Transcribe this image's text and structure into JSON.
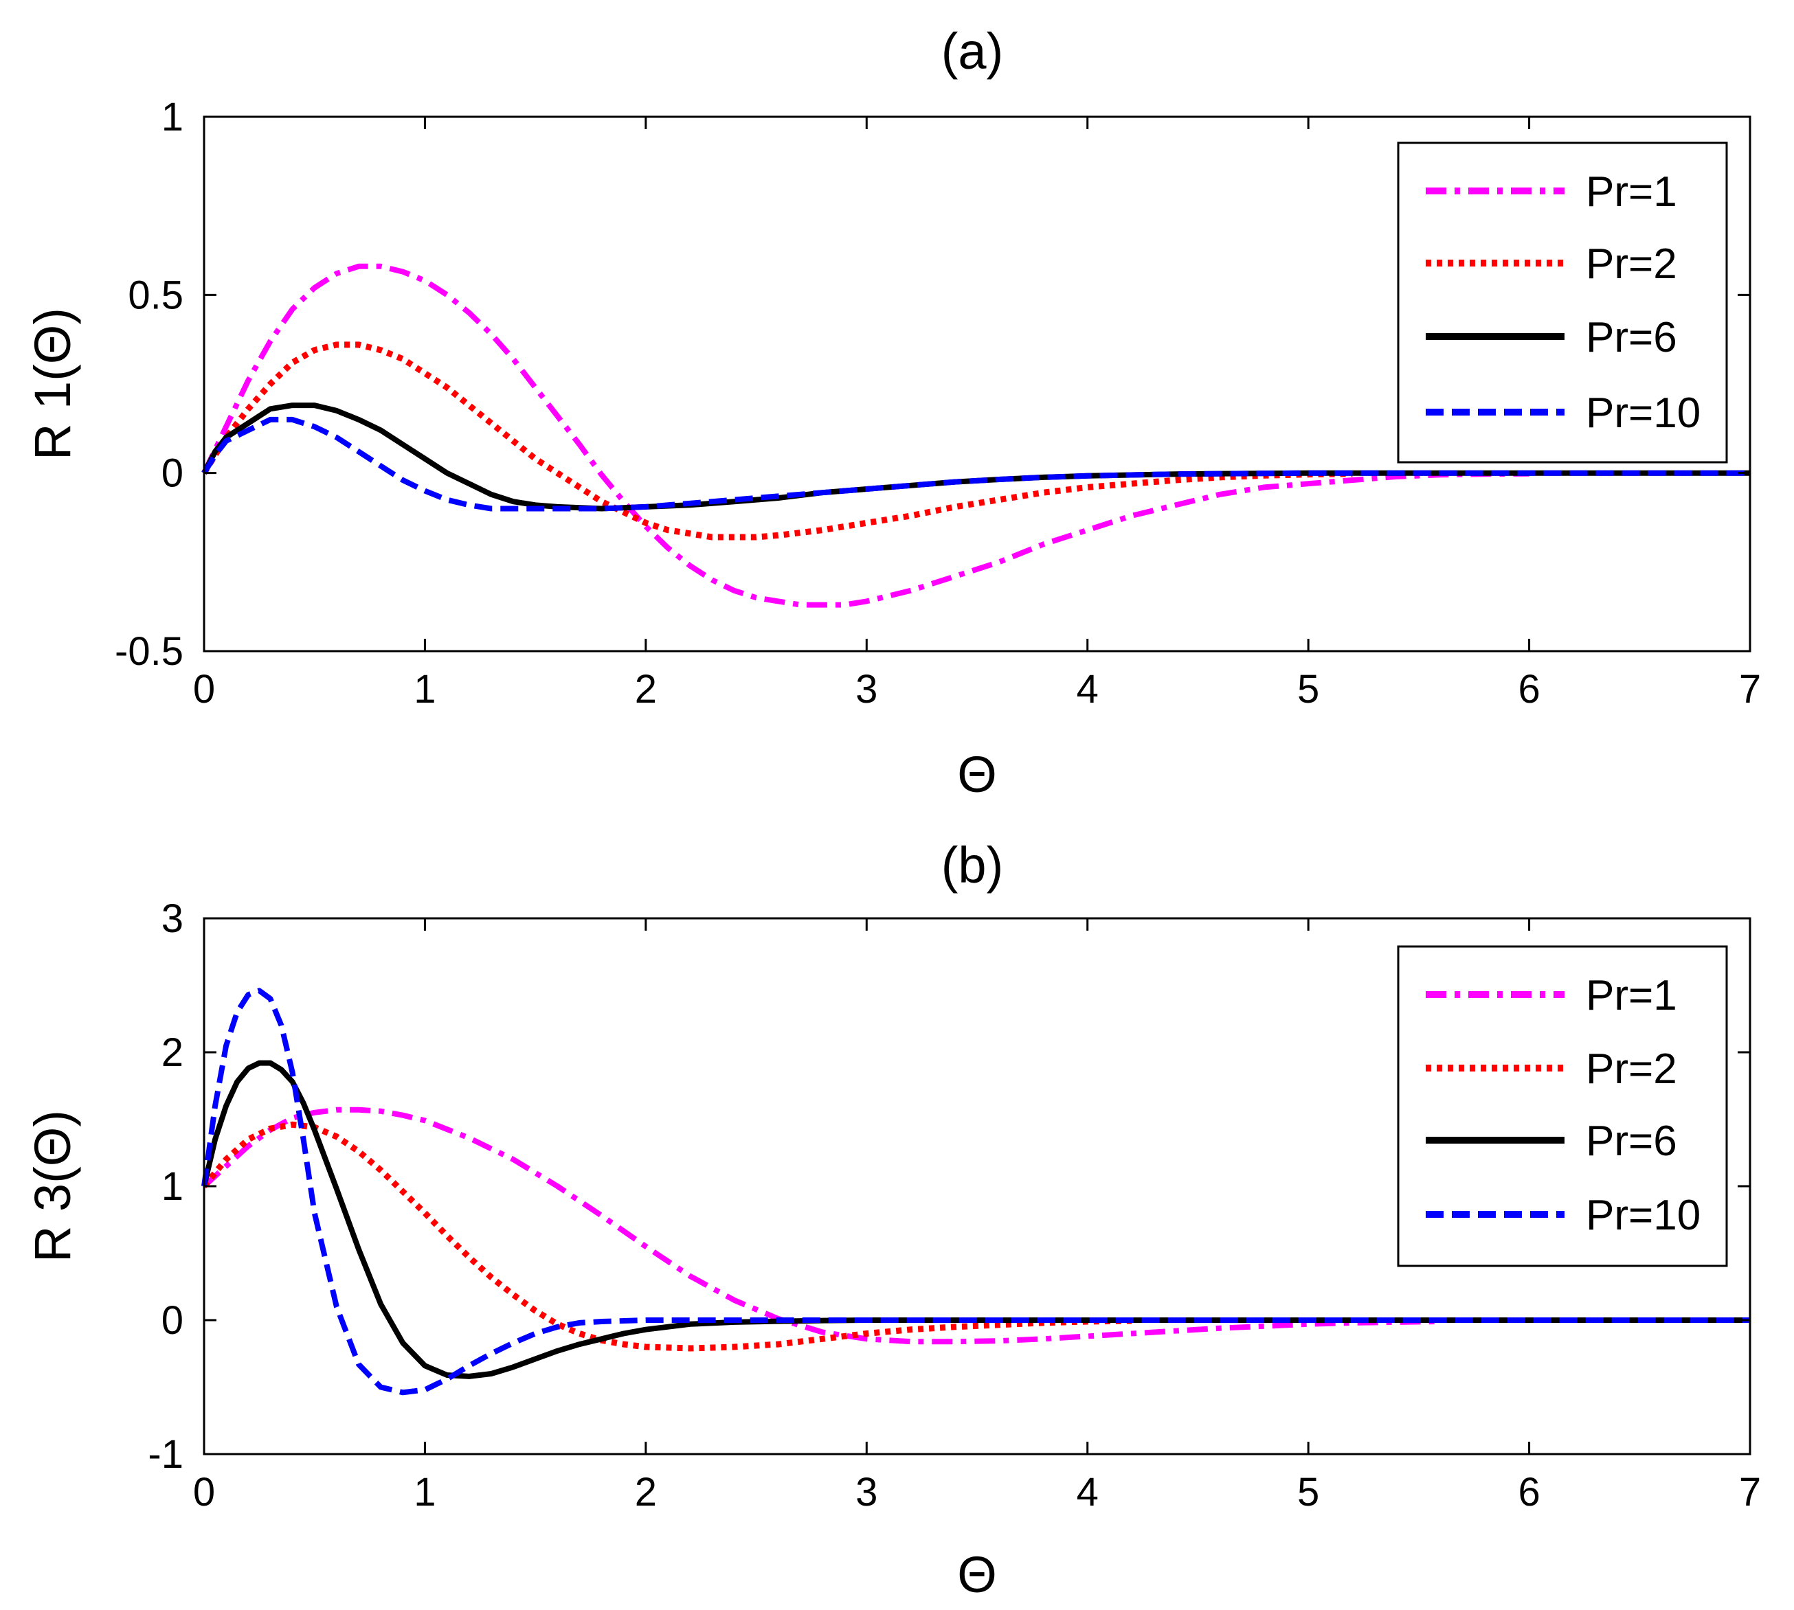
{
  "chart_data": [
    {
      "type": "line",
      "title": "(a)",
      "xlabel": "Θ",
      "ylabel": "R 1(Θ)",
      "xlim": [
        0,
        7
      ],
      "ylim": [
        -0.5,
        1
      ],
      "xticks": [
        0,
        1,
        2,
        3,
        4,
        5,
        6,
        7
      ],
      "xticklabels": [
        "0",
        "1",
        "2",
        "3",
        "4",
        "5",
        "6",
        "7"
      ],
      "yticks": [
        -0.5,
        0,
        0.5,
        1
      ],
      "yticklabels": [
        "-0.5",
        "0",
        "0.5",
        "1"
      ],
      "grid": false,
      "legend_position": "top-right",
      "series": [
        {
          "name": "Pr=1",
          "color": "#ff00ff",
          "dash": "dashdot",
          "x": [
            0,
            0.1,
            0.2,
            0.3,
            0.4,
            0.5,
            0.6,
            0.7,
            0.8,
            0.9,
            1.0,
            1.1,
            1.2,
            1.3,
            1.4,
            1.5,
            1.6,
            1.7,
            1.8,
            1.9,
            2.0,
            2.1,
            2.2,
            2.3,
            2.4,
            2.5,
            2.6,
            2.7,
            2.8,
            2.9,
            3.0,
            3.2,
            3.4,
            3.6,
            3.8,
            4.0,
            4.2,
            4.4,
            4.6,
            4.8,
            5.0,
            5.2,
            5.4,
            5.6,
            5.8,
            6.0
          ],
          "y": [
            0,
            0.13,
            0.26,
            0.37,
            0.46,
            0.52,
            0.56,
            0.58,
            0.58,
            0.565,
            0.54,
            0.5,
            0.45,
            0.39,
            0.32,
            0.24,
            0.16,
            0.08,
            -0.005,
            -0.08,
            -0.15,
            -0.21,
            -0.26,
            -0.3,
            -0.33,
            -0.35,
            -0.36,
            -0.37,
            -0.37,
            -0.37,
            -0.36,
            -0.33,
            -0.29,
            -0.25,
            -0.2,
            -0.16,
            -0.12,
            -0.09,
            -0.06,
            -0.04,
            -0.03,
            -0.02,
            -0.01,
            -0.005,
            -0.003,
            -0.002
          ]
        },
        {
          "name": "Pr=2",
          "color": "#ff0000",
          "dash": "dotted",
          "x": [
            0,
            0.1,
            0.2,
            0.3,
            0.4,
            0.5,
            0.6,
            0.7,
            0.8,
            0.9,
            1.0,
            1.1,
            1.2,
            1.3,
            1.4,
            1.5,
            1.6,
            1.7,
            1.8,
            1.9,
            2.0,
            2.1,
            2.2,
            2.3,
            2.4,
            2.5,
            2.6,
            2.8,
            3.0,
            3.2,
            3.4,
            3.6,
            3.8,
            4.0,
            4.2,
            4.4,
            4.6,
            4.8,
            5.0,
            5.2
          ],
          "y": [
            0,
            0.1,
            0.18,
            0.25,
            0.31,
            0.345,
            0.36,
            0.36,
            0.345,
            0.32,
            0.28,
            0.24,
            0.19,
            0.14,
            0.09,
            0.04,
            0.0,
            -0.04,
            -0.08,
            -0.11,
            -0.14,
            -0.16,
            -0.17,
            -0.18,
            -0.18,
            -0.18,
            -0.175,
            -0.16,
            -0.14,
            -0.12,
            -0.095,
            -0.075,
            -0.055,
            -0.04,
            -0.03,
            -0.02,
            -0.012,
            -0.007,
            -0.004,
            -0.002
          ]
        },
        {
          "name": "Pr=6",
          "color": "#000000",
          "dash": "solid",
          "x": [
            0,
            0.05,
            0.1,
            0.2,
            0.3,
            0.4,
            0.5,
            0.6,
            0.7,
            0.8,
            0.9,
            1.0,
            1.1,
            1.2,
            1.3,
            1.4,
            1.5,
            1.6,
            1.8,
            2.0,
            2.2,
            2.4,
            2.6,
            2.8,
            3.0,
            3.2,
            3.4,
            3.6,
            3.8,
            4.0,
            4.4,
            5.0,
            6.0,
            7.0
          ],
          "y": [
            0,
            0.06,
            0.1,
            0.14,
            0.18,
            0.19,
            0.19,
            0.175,
            0.15,
            0.12,
            0.08,
            0.04,
            0.0,
            -0.03,
            -0.06,
            -0.08,
            -0.09,
            -0.095,
            -0.1,
            -0.095,
            -0.09,
            -0.08,
            -0.07,
            -0.055,
            -0.045,
            -0.035,
            -0.025,
            -0.018,
            -0.012,
            -0.008,
            -0.003,
            0,
            0,
            0
          ]
        },
        {
          "name": "Pr=10",
          "color": "#0000ff",
          "dash": "dashed",
          "x": [
            0,
            0.05,
            0.1,
            0.2,
            0.3,
            0.4,
            0.5,
            0.6,
            0.7,
            0.8,
            0.9,
            1.0,
            1.1,
            1.2,
            1.3,
            1.4,
            1.5,
            1.6,
            1.8,
            2.0,
            2.2,
            2.4,
            2.6,
            2.8,
            3.0,
            3.2,
            3.4,
            3.6,
            3.8,
            4.0,
            4.4,
            5.0,
            6.0,
            7.0
          ],
          "y": [
            0,
            0.05,
            0.09,
            0.12,
            0.15,
            0.15,
            0.13,
            0.1,
            0.06,
            0.02,
            -0.02,
            -0.05,
            -0.075,
            -0.09,
            -0.1,
            -0.1,
            -0.1,
            -0.1,
            -0.1,
            -0.095,
            -0.085,
            -0.075,
            -0.065,
            -0.055,
            -0.045,
            -0.035,
            -0.025,
            -0.018,
            -0.012,
            -0.008,
            -0.003,
            0,
            0,
            0
          ]
        }
      ]
    },
    {
      "type": "line",
      "title": "(b)",
      "xlabel": "Θ",
      "ylabel": "R 3(Θ)",
      "xlim": [
        0,
        7
      ],
      "ylim": [
        -1,
        3
      ],
      "xticks": [
        0,
        1,
        2,
        3,
        4,
        5,
        6,
        7
      ],
      "xticklabels": [
        "0",
        "1",
        "2",
        "3",
        "4",
        "5",
        "6",
        "7"
      ],
      "yticks": [
        -1,
        0,
        1,
        2,
        3
      ],
      "yticklabels": [
        "-1",
        "0",
        "1",
        "2",
        "3"
      ],
      "grid": false,
      "legend_position": "top-right",
      "series": [
        {
          "name": "Pr=1",
          "color": "#ff00ff",
          "dash": "dashdot",
          "x": [
            0,
            0.1,
            0.2,
            0.3,
            0.4,
            0.5,
            0.6,
            0.7,
            0.8,
            0.9,
            1.0,
            1.2,
            1.4,
            1.6,
            1.8,
            2.0,
            2.2,
            2.4,
            2.6,
            2.8,
            3.0,
            3.2,
            3.4,
            3.6,
            3.8,
            4.0,
            4.2,
            4.4,
            4.6,
            4.8,
            5.0,
            5.2,
            5.4,
            5.6
          ],
          "y": [
            1,
            1.15,
            1.3,
            1.42,
            1.51,
            1.55,
            1.57,
            1.57,
            1.56,
            1.53,
            1.49,
            1.36,
            1.2,
            1.0,
            0.78,
            0.55,
            0.33,
            0.15,
            0.01,
            -0.09,
            -0.14,
            -0.16,
            -0.16,
            -0.155,
            -0.14,
            -0.12,
            -0.1,
            -0.08,
            -0.06,
            -0.045,
            -0.03,
            -0.02,
            -0.015,
            -0.01
          ]
        },
        {
          "name": "Pr=2",
          "color": "#ff0000",
          "dash": "dotted",
          "x": [
            0,
            0.1,
            0.2,
            0.3,
            0.4,
            0.5,
            0.6,
            0.7,
            0.8,
            0.9,
            1.0,
            1.1,
            1.2,
            1.3,
            1.4,
            1.5,
            1.6,
            1.7,
            1.8,
            1.9,
            2.0,
            2.2,
            2.4,
            2.6,
            2.8,
            3.0,
            3.2,
            3.4,
            3.6,
            3.8,
            4.0,
            4.2
          ],
          "y": [
            1,
            1.2,
            1.35,
            1.43,
            1.46,
            1.44,
            1.37,
            1.26,
            1.12,
            0.96,
            0.8,
            0.63,
            0.47,
            0.32,
            0.19,
            0.07,
            -0.03,
            -0.1,
            -0.15,
            -0.18,
            -0.2,
            -0.21,
            -0.2,
            -0.18,
            -0.14,
            -0.1,
            -0.07,
            -0.05,
            -0.035,
            -0.02,
            -0.01,
            -0.005
          ]
        },
        {
          "name": "Pr=6",
          "color": "#000000",
          "dash": "solid",
          "x": [
            0,
            0.05,
            0.1,
            0.15,
            0.2,
            0.25,
            0.3,
            0.35,
            0.4,
            0.45,
            0.5,
            0.6,
            0.7,
            0.8,
            0.9,
            1.0,
            1.1,
            1.2,
            1.3,
            1.4,
            1.5,
            1.6,
            1.7,
            1.8,
            1.9,
            2.0,
            2.2,
            2.4,
            2.6,
            2.8,
            3.0,
            3.5,
            4.0,
            5.0,
            6.0,
            7.0
          ],
          "y": [
            1,
            1.35,
            1.6,
            1.78,
            1.88,
            1.92,
            1.92,
            1.87,
            1.78,
            1.62,
            1.42,
            0.98,
            0.53,
            0.12,
            -0.17,
            -0.34,
            -0.41,
            -0.42,
            -0.4,
            -0.35,
            -0.29,
            -0.23,
            -0.18,
            -0.14,
            -0.1,
            -0.07,
            -0.03,
            -0.015,
            -0.008,
            -0.003,
            0,
            0,
            0,
            0,
            0,
            0
          ]
        },
        {
          "name": "Pr=10",
          "color": "#0000ff",
          "dash": "dashed",
          "x": [
            0,
            0.05,
            0.1,
            0.15,
            0.2,
            0.25,
            0.3,
            0.35,
            0.4,
            0.45,
            0.5,
            0.6,
            0.7,
            0.8,
            0.9,
            1.0,
            1.1,
            1.2,
            1.3,
            1.4,
            1.5,
            1.6,
            1.7,
            1.8,
            2.0,
            2.2,
            2.4,
            2.6,
            3.0,
            4.0,
            5.0,
            6.0,
            7.0
          ],
          "y": [
            1,
            1.6,
            2.05,
            2.3,
            2.43,
            2.46,
            2.4,
            2.2,
            1.85,
            1.35,
            0.8,
            0.1,
            -0.33,
            -0.5,
            -0.54,
            -0.52,
            -0.44,
            -0.34,
            -0.25,
            -0.17,
            -0.1,
            -0.05,
            -0.02,
            -0.01,
            0,
            0,
            0,
            0,
            0,
            0,
            0,
            0,
            0
          ]
        }
      ]
    }
  ]
}
